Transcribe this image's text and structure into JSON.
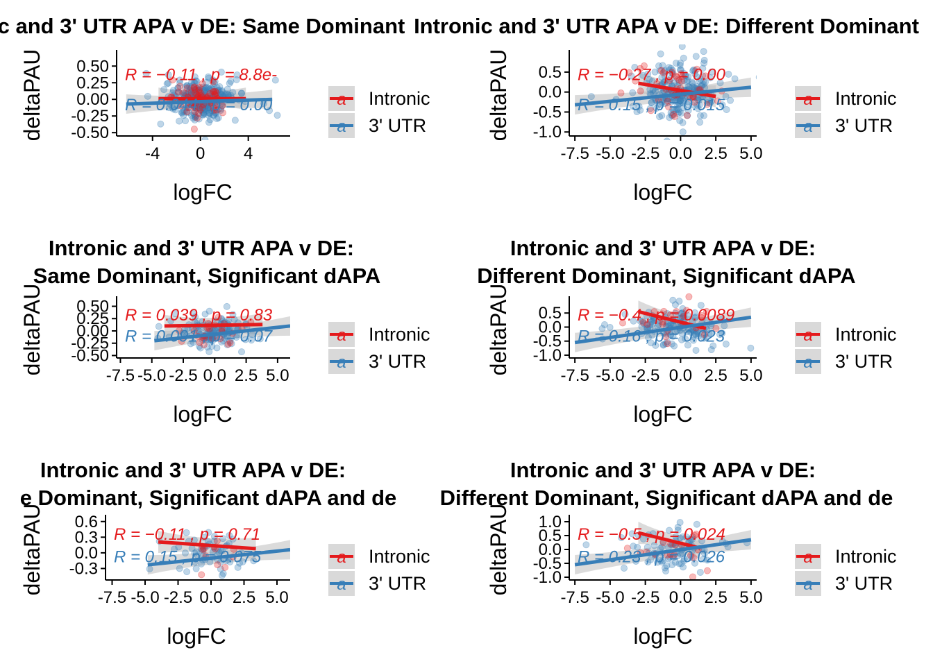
{
  "colors": {
    "intronic": "#E41A1C",
    "utr": "#377EB8",
    "band": "#BEBEBE",
    "legend_key_bg": "#D9D9D9"
  },
  "legend": {
    "items": [
      "Intronic",
      "3' UTR"
    ],
    "glyph": "a"
  },
  "chart_data": [
    {
      "type": "scatter",
      "title": [
        "c and 3' UTR APA v DE: Same Dominant"
      ],
      "xlabel": "logFC",
      "ylabel": "deltaPAU",
      "xlim": [
        -7,
        7.5
      ],
      "ylim": [
        -0.55,
        0.68
      ],
      "xticks": [
        -4,
        0,
        4
      ],
      "xtick_labels": [
        "-4",
        "0",
        "4"
      ],
      "yticks": [
        -0.5,
        -0.25,
        0,
        0.25,
        0.5
      ],
      "ytick_labels": [
        "-0.50",
        "-0.25",
        "0.00",
        "0.25",
        "0.50"
      ],
      "point_cloud": {
        "x_center": 0,
        "x_spread": 1.3,
        "y_center": 0,
        "y_spread": 0.16,
        "n_utr": 260,
        "n_intronic": 70
      },
      "series": [
        {
          "name": "Intronic",
          "stat": "R = −0.11 , p = 8.8e-",
          "fit": {
            "x": [
              -3.5,
              3.8
            ],
            "y": [
              0.01,
              0.01
            ]
          }
        },
        {
          "name": "3' UTR",
          "stat": "R = 0.044 , p = 0.00",
          "fit": {
            "x": [
              -6.2,
              6.0
            ],
            "y": [
              -0.07,
              0.0
            ]
          }
        }
      ],
      "grid": false
    },
    {
      "type": "scatter",
      "title": [
        "Intronic and 3' UTR APA v DE: Different Dominant"
      ],
      "xlabel": "logFC",
      "ylabel": "deltaPAU",
      "xlim": [
        -7.9,
        5.4
      ],
      "ylim": [
        -1.1,
        0.95
      ],
      "xticks": [
        -7.5,
        -5,
        -2.5,
        0,
        2.5,
        5
      ],
      "xtick_labels": [
        "-7.5",
        "-5.0",
        "-2.5",
        "0.0",
        "2.5",
        "5.0"
      ],
      "yticks": [
        -1,
        -0.5,
        0,
        0.5
      ],
      "ytick_labels": [
        "-1.0",
        "-0.5",
        "0.0",
        "0.5"
      ],
      "point_cloud": {
        "x_center": -0.3,
        "x_spread": 1.5,
        "y_center": 0,
        "y_spread": 0.4,
        "n_utr": 220,
        "n_intronic": 45
      },
      "series": [
        {
          "name": "Intronic",
          "stat": "R = −0.27 , p = 0.00",
          "fit": {
            "x": [
              -3.0,
              2.5
            ],
            "y": [
              0.22,
              -0.11
            ]
          }
        },
        {
          "name": "3' UTR",
          "stat": "R = 0.15 , p = 0.015",
          "fit": {
            "x": [
              -7.5,
              5.0
            ],
            "y": [
              -0.32,
              0.12
            ]
          }
        }
      ],
      "grid": false
    },
    {
      "type": "scatter",
      "title": [
        "Intronic and 3' UTR APA v DE:",
        "Same Dominant, Significant dAPA"
      ],
      "xlabel": "logFC",
      "ylabel": "deltaPAU",
      "xlim": [
        -7.8,
        6.0
      ],
      "ylim": [
        -0.55,
        0.62
      ],
      "xticks": [
        -7.5,
        -5,
        -2.5,
        0,
        2.5,
        5
      ],
      "xtick_labels": [
        "-7.5",
        "-5.0",
        "-2.5",
        "0.0",
        "2.5",
        "5.0"
      ],
      "yticks": [
        -0.5,
        -0.25,
        0,
        0.25,
        0.5
      ],
      "ytick_labels": [
        "-0.50",
        "-0.25",
        "0.00",
        "0.25",
        "0.50"
      ],
      "point_cloud": {
        "x_center": 0,
        "x_spread": 1.4,
        "y_center": 0,
        "y_spread": 0.18,
        "n_utr": 120,
        "n_intronic": 25
      },
      "series": [
        {
          "name": "Intronic",
          "stat": "R = 0.039 , p = 0.83",
          "fit": {
            "x": [
              -4.0,
              3.8
            ],
            "y": [
              0.1,
              0.13
            ]
          }
        },
        {
          "name": "3' UTR",
          "stat": "R = 0.091 , p = 0.07",
          "fit": {
            "x": [
              -4.8,
              6.0
            ],
            "y": [
              -0.2,
              0.1
            ]
          }
        }
      ],
      "grid": false
    },
    {
      "type": "scatter",
      "title": [
        "Intronic and 3' UTR APA v DE:",
        "Different Dominant, Significant dAPA"
      ],
      "xlabel": "logFC",
      "ylabel": "deltaPAU",
      "xlim": [
        -7.9,
        5.4
      ],
      "ylim": [
        -1.1,
        0.95
      ],
      "xticks": [
        -7.5,
        -5,
        -2.5,
        0,
        2.5,
        5
      ],
      "xtick_labels": [
        "-7.5",
        "-5.0",
        "-2.5",
        "0.0",
        "2.5",
        "5.0"
      ],
      "yticks": [
        -1,
        -0.5,
        0,
        0.5
      ],
      "ytick_labels": [
        "-1.0",
        "-0.5",
        "0.0",
        "0.5"
      ],
      "point_cloud": {
        "x_center": -0.3,
        "x_spread": 1.5,
        "y_center": 0,
        "y_spread": 0.4,
        "n_utr": 130,
        "n_intronic": 25
      },
      "series": [
        {
          "name": "Intronic",
          "stat": "R = −0.4 , p = 0.0089",
          "fit": {
            "x": [
              -3.0,
              1.8
            ],
            "y": [
              0.55,
              -0.05
            ]
          }
        },
        {
          "name": "3' UTR",
          "stat": "R = 0.16 , p = 0.023",
          "fit": {
            "x": [
              -7.5,
              5.0
            ],
            "y": [
              -0.55,
              0.35
            ]
          }
        }
      ],
      "grid": false
    },
    {
      "type": "scatter",
      "title": [
        "Intronic and 3' UTR APA v DE:",
        "e Dominant, Significant dAPA and de"
      ],
      "xlabel": "logFC",
      "ylabel": "deltaPAU",
      "xlim": [
        -8.0,
        6.0
      ],
      "ylim": [
        -0.52,
        0.65
      ],
      "xticks": [
        -7.5,
        -5,
        -2.5,
        0,
        2.5,
        5
      ],
      "xtick_labels": [
        "-7.5",
        "-5.0",
        "-2.5",
        "0.0",
        "2.5",
        "5.0"
      ],
      "yticks": [
        -0.3,
        0,
        0.3,
        0.6
      ],
      "ytick_labels": [
        "-0.3",
        "0.0",
        "0.3",
        "0.6"
      ],
      "point_cloud": {
        "x_center": 0,
        "x_spread": 1.4,
        "y_center": 0,
        "y_spread": 0.18,
        "n_utr": 60,
        "n_intronic": 12
      },
      "series": [
        {
          "name": "Intronic",
          "stat": "R = −0.11 , p = 0.71",
          "fit": {
            "x": [
              -4.0,
              3.4
            ],
            "y": [
              0.21,
              0.08
            ]
          }
        },
        {
          "name": "3' UTR",
          "stat": "R = 0.15 , p = 0.075",
          "fit": {
            "x": [
              -4.8,
              6.0
            ],
            "y": [
              -0.23,
              0.06
            ]
          }
        }
      ],
      "grid": false
    },
    {
      "type": "scatter",
      "title": [
        "Intronic and 3' UTR APA v DE:",
        "Different Dominant, Significant dAPA and de"
      ],
      "xlabel": "logFC",
      "ylabel": "deltaPAU",
      "xlim": [
        -7.9,
        5.4
      ],
      "ylim": [
        -1.1,
        1.1
      ],
      "xticks": [
        -7.5,
        -5,
        -2.5,
        0,
        2.5,
        5
      ],
      "xtick_labels": [
        "-7.5",
        "-5.0",
        "-2.5",
        "0.0",
        "2.5",
        "5.0"
      ],
      "yticks": [
        -1,
        -0.5,
        0,
        0.5,
        1
      ],
      "ytick_labels": [
        "-1.0",
        "-0.5",
        "0.0",
        "0.5",
        "1.0"
      ],
      "point_cloud": {
        "x_center": -0.3,
        "x_spread": 1.5,
        "y_center": 0,
        "y_spread": 0.4,
        "n_utr": 90,
        "n_intronic": 18
      },
      "series": [
        {
          "name": "Intronic",
          "stat": "R = −0.5 , p = 0.024",
          "fit": {
            "x": [
              -3.0,
              1.4
            ],
            "y": [
              0.6,
              0.05
            ]
          }
        },
        {
          "name": "3' UTR",
          "stat": "R = 0.23 , p = 0.026",
          "fit": {
            "x": [
              -7.5,
              5.0
            ],
            "y": [
              -0.55,
              0.35
            ]
          }
        }
      ],
      "grid": false
    }
  ]
}
